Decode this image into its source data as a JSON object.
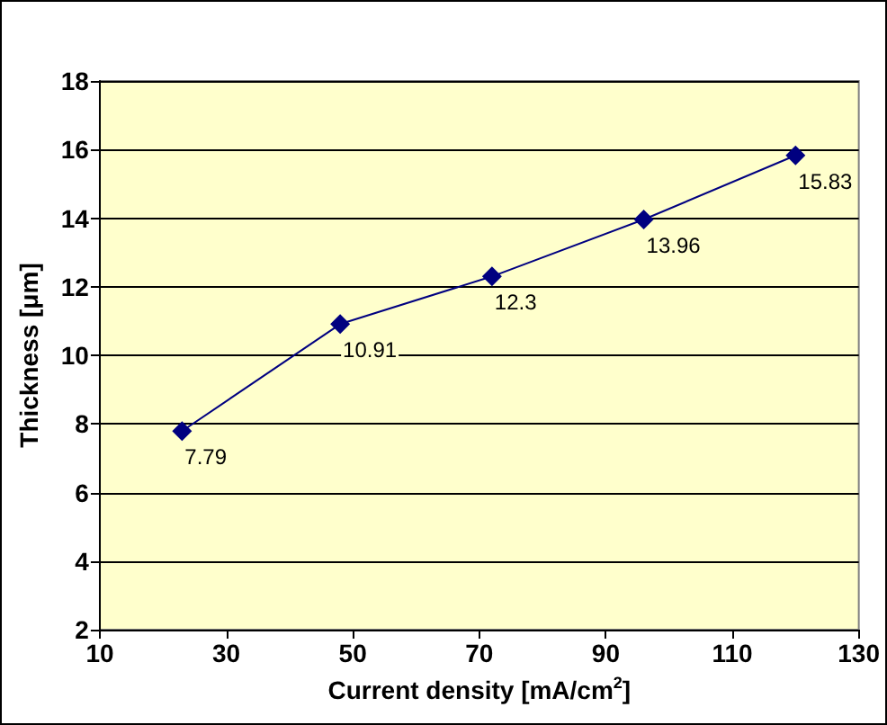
{
  "chart_data": {
    "type": "line",
    "xlabel": "Current density [mA/cm$^{2}$]",
    "ylabel": "Thickness [μm]",
    "x": [
      23,
      48,
      72,
      96,
      120
    ],
    "series": [
      {
        "color": "#000080",
        "values": [
          7.79,
          10.91,
          12.3,
          13.96,
          15.83
        ]
      }
    ],
    "xlim": [
      10,
      130
    ],
    "xticks": [
      10,
      30,
      50,
      70,
      90,
      110,
      130
    ],
    "ylim": [
      2,
      18
    ],
    "yticks": [
      2,
      4,
      6,
      8,
      10,
      12,
      14,
      16,
      18
    ],
    "grid": "y",
    "marker": "diamond",
    "line_style": "solid",
    "data_labels": true
  }
}
